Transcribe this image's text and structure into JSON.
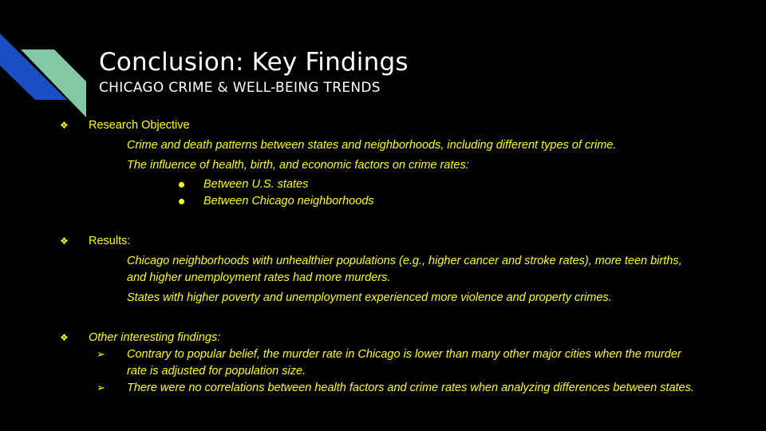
{
  "slide": {
    "title": "Conclusion: Key Findings",
    "subtitle": "CHICAGO CRIME & WELL-BEING TRENDS",
    "colors": {
      "background": "#000000",
      "title": "#ffffff",
      "body_text": "#ffff00",
      "accent_blue": "#1a4fc4",
      "accent_green": "#84c8a6"
    }
  },
  "research": {
    "heading": "Research Objective",
    "line1": "Crime and death patterns between states and neighborhoods, including different types of crime.",
    "line2": "The influence of health, birth, and economic factors on crime rates:",
    "sub1": "Between U.S. states",
    "sub2": "Between Chicago neighborhoods"
  },
  "results": {
    "heading": "Results:",
    "line1a": "Chicago neighborhoods with unhealthier populations (e.g., higher cancer and stroke rates), more teen births,",
    "line1b": "and higher unemployment rates had more murders.",
    "line2": "States with higher poverty and unemployment experienced more violence and property crimes."
  },
  "other": {
    "heading": "Other interesting findings:",
    "item1a": "Contrary to popular belief, the murder rate in Chicago is lower than many other major cities when the murder",
    "item1b": "rate is adjusted for population size.",
    "item2": "There were no correlations between health factors and crime rates when analyzing differences between states."
  },
  "icons": {
    "section_bullet": "diamond-bullet-icon",
    "sub_bullet": "filled-circle-bullet-icon",
    "arrow_bullet": "arrowhead-bullet-icon"
  }
}
